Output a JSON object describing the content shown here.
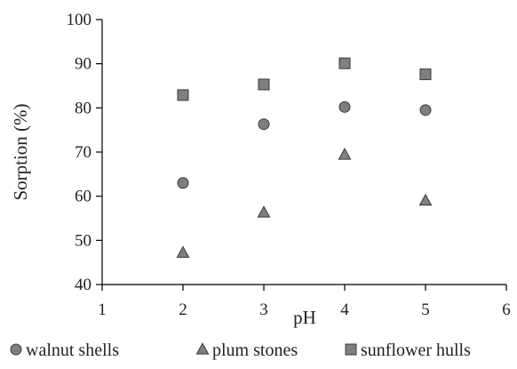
{
  "chart_data": {
    "type": "scatter",
    "xlabel": "pH",
    "ylabel": "Sorption (%)",
    "xlim": [
      1,
      6
    ],
    "ylim": [
      40,
      100
    ],
    "xticks": [
      1,
      2,
      3,
      4,
      5,
      6
    ],
    "yticks": [
      40,
      50,
      60,
      70,
      80,
      90,
      100
    ],
    "grid": false,
    "legend_position": "bottom",
    "series": [
      {
        "name": "walnut shells",
        "marker": "circle",
        "color": "#7f7f7f",
        "points": [
          [
            2,
            63
          ],
          [
            3,
            76.3
          ],
          [
            4,
            80.2
          ],
          [
            5,
            79.5
          ]
        ]
      },
      {
        "name": "plum stones",
        "marker": "triangle",
        "color": "#7f7f7f",
        "points": [
          [
            2,
            47.2
          ],
          [
            3,
            56.3
          ],
          [
            4,
            69.4
          ],
          [
            5,
            59
          ]
        ]
      },
      {
        "name": "sunflower hulls",
        "marker": "square",
        "color": "#7f7f7f",
        "points": [
          [
            2,
            82.9
          ],
          [
            3,
            85.3
          ],
          [
            4,
            90.1
          ],
          [
            5,
            87.6
          ]
        ]
      }
    ]
  }
}
